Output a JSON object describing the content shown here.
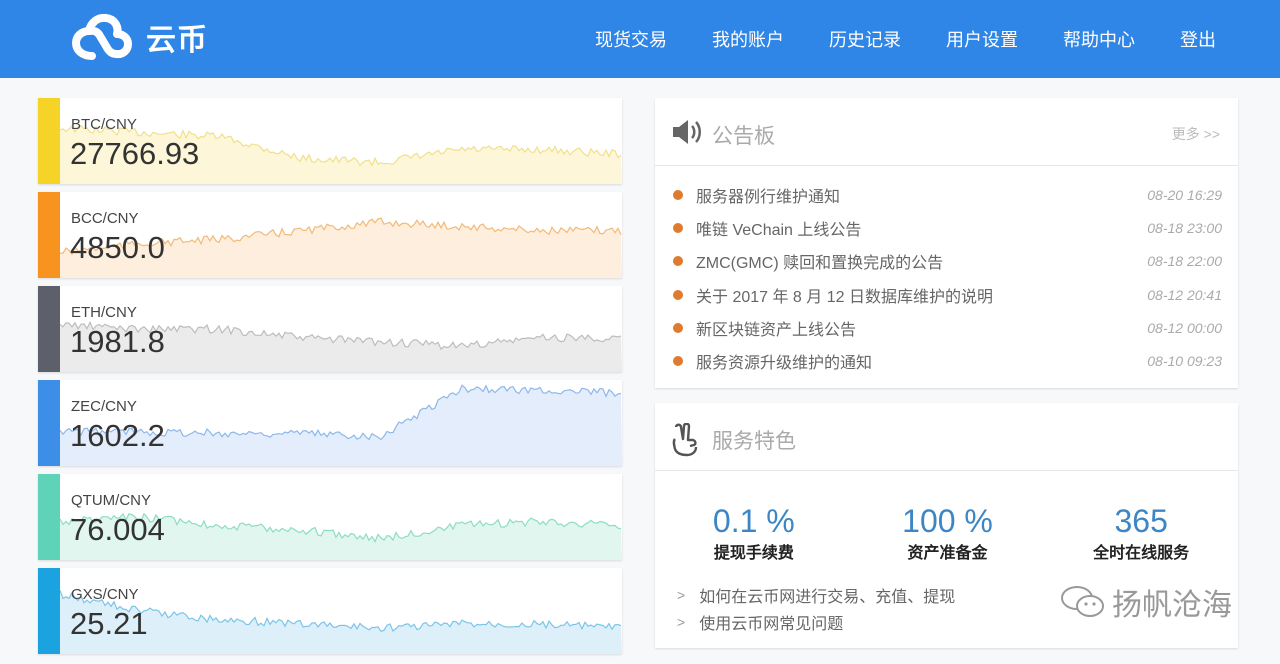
{
  "nav": {
    "logo": "云币",
    "items": [
      "现货交易",
      "我的账户",
      "历史记录",
      "用户设置",
      "帮助中心",
      "登出"
    ]
  },
  "markets": [
    {
      "pair": "BTC/CNY",
      "price": "27766.93",
      "color": "#f5d327",
      "fill": "#fdf6d8",
      "line": "#f1e08a"
    },
    {
      "pair": "BCC/CNY",
      "price": "4850.0",
      "color": "#f7931e",
      "fill": "#fdeedd",
      "line": "#f3b978"
    },
    {
      "pair": "ETH/CNY",
      "price": "1981.8",
      "color": "#5d5f6b",
      "fill": "#ebebec",
      "line": "#bdbdbf"
    },
    {
      "pair": "ZEC/CNY",
      "price": "1602.2",
      "color": "#3d8ee6",
      "fill": "#e3edfb",
      "line": "#8db8ea"
    },
    {
      "pair": "QTUM/CNY",
      "price": "76.004",
      "color": "#5fd3b8",
      "fill": "#e0f6ef",
      "line": "#8ddcc6"
    },
    {
      "pair": "GXS/CNY",
      "price": "25.21",
      "color": "#1ba3e0",
      "fill": "#ddf0fa",
      "line": "#7cc4e8"
    }
  ],
  "announcements": {
    "title": "公告板",
    "more": "更多 >>",
    "items": [
      {
        "text": "服务器例行维护通知",
        "date": "08-20 16:29"
      },
      {
        "text": "唯链 VeChain 上线公告",
        "date": "08-18 23:00"
      },
      {
        "text": "ZMC(GMC) 赎回和置换完成的公告",
        "date": "08-18 22:00"
      },
      {
        "text": "关于 2017 年 8 月 12 日数据库维护的说明",
        "date": "08-12 20:41"
      },
      {
        "text": "新区块链资产上线公告",
        "date": "08-12 00:00"
      },
      {
        "text": "服务资源升级维护的通知",
        "date": "08-10 09:23"
      }
    ]
  },
  "features": {
    "title": "服务特色",
    "stats": [
      {
        "value": "0.1 %",
        "label": "提现手续费"
      },
      {
        "value": "100 %",
        "label": "资产准备金"
      },
      {
        "value": "365",
        "label": "全时在线服务"
      }
    ],
    "links": [
      "如何在云币网进行交易、充值、提现",
      "使用云币网常见问题"
    ]
  },
  "watermark": "扬帆沧海"
}
